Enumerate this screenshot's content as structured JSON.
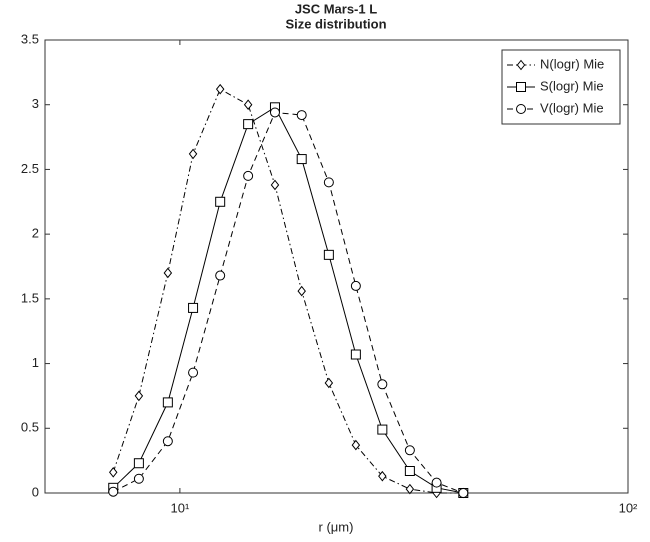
{
  "chart_data": {
    "type": "line",
    "title": "JSC Mars-1 L",
    "subtitle": "Size distribution",
    "x_label": "r (μm)",
    "x": [
      7.1,
      8.1,
      9.4,
      10.7,
      12.3,
      14.2,
      16.3,
      18.7,
      21.5,
      24.7,
      28.3,
      32.6,
      37.4,
      42.9
    ],
    "xlim": [
      5,
      100
    ],
    "xscale": "log",
    "xticks": [
      {
        "value": 10,
        "label": "10¹"
      },
      {
        "value": 100,
        "label": "10²"
      }
    ],
    "ylim": [
      0,
      3.5
    ],
    "yticks": [
      0,
      0.5,
      1,
      1.5,
      2,
      2.5,
      3,
      3.5
    ],
    "legend": "upper right",
    "series": [
      {
        "name": "N(logr) Mie",
        "color": "#000000",
        "marker": "diamond",
        "dash": "dashdot",
        "values": [
          0.16,
          0.75,
          1.7,
          2.62,
          3.12,
          3.0,
          2.38,
          1.56,
          0.85,
          0.37,
          0.13,
          0.03,
          0.0,
          0.0
        ]
      },
      {
        "name": "S(logr) Mie",
        "color": "#000000",
        "marker": "square",
        "dash": "solid",
        "values": [
          0.04,
          0.23,
          0.7,
          1.43,
          2.25,
          2.85,
          2.98,
          2.58,
          1.84,
          1.07,
          0.49,
          0.17,
          0.04,
          0.0
        ]
      },
      {
        "name": "V(logr) Mie",
        "color": "#000000",
        "marker": "circle",
        "dash": "dashed",
        "values": [
          0.01,
          0.11,
          0.4,
          0.93,
          1.68,
          2.45,
          2.94,
          2.92,
          2.4,
          1.6,
          0.84,
          0.33,
          0.08,
          0.0
        ]
      }
    ]
  }
}
